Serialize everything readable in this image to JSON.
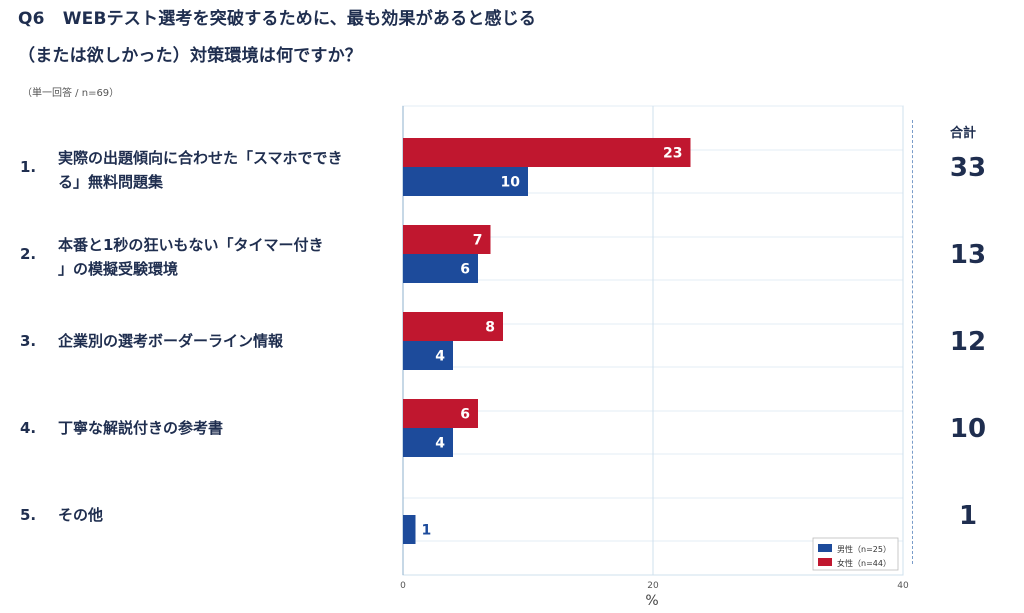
{
  "title": {
    "qnum": "Q6",
    "line1": "WEBテスト選考を突破するために、最も効果があると感じる",
    "line2": "（または欲しかった）対策環境は何ですか？"
  },
  "note": "（単一回答 / n=69）",
  "total_header": "合計",
  "rows": [
    {
      "num": "1.",
      "label": "実際の出題傾向に合わせた「スマホででき る」無料問題集",
      "total": "33"
    },
    {
      "num": "2.",
      "label": "本番と1秒の狂いもない「タイマー付き 」の模擬受験環境",
      "total": "13"
    },
    {
      "num": "3.",
      "label": "企業別の選考ボーダーライン情報",
      "total": "12"
    },
    {
      "num": "4.",
      "label": "丁寧な解説付きの参考書",
      "total": "10"
    },
    {
      "num": "5.",
      "label": "その他",
      "total": "1"
    }
  ],
  "chart_data": {
    "type": "bar",
    "orientation": "horizontal",
    "categories": [
      "1.",
      "2.",
      "3.",
      "4.",
      "5."
    ],
    "series": [
      {
        "name": "女性（n=44）",
        "values": [
          23,
          7,
          8,
          6,
          0
        ],
        "color": "#c0172f"
      },
      {
        "name": "男性（n=25）",
        "values": [
          10,
          6,
          4,
          4,
          1
        ],
        "color": "#1d4b9b"
      }
    ],
    "xlabel": "%",
    "xlim": [
      0,
      40
    ],
    "xticks": [
      0,
      20,
      40
    ],
    "grid": true,
    "legend_position": "bottom-right",
    "legend": [
      "男性（n=25）",
      "女性（n=44）"
    ]
  }
}
